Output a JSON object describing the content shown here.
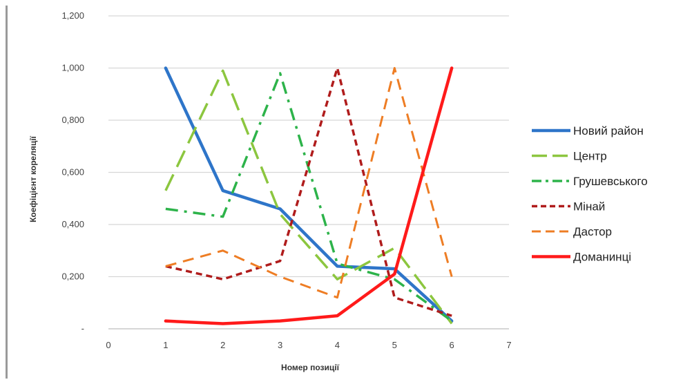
{
  "chart_data": {
    "type": "line",
    "xlabel": "Номер позиції",
    "ylabel": "Коефіцієнт кореляції",
    "xlim": [
      0,
      7
    ],
    "ylim": [
      0,
      1.2
    ],
    "x_ticks": [
      0,
      1,
      2,
      3,
      4,
      5,
      6,
      7
    ],
    "y_ticks": [
      0,
      0.2,
      0.4,
      0.6,
      0.8,
      1.0,
      1.2
    ],
    "y_tick_labels": [
      "-",
      "0,200",
      "0,400",
      "0,600",
      "0,800",
      "1,000",
      "1,200"
    ],
    "x_tick_labels": [
      "0",
      "1",
      "2",
      "3",
      "4",
      "5",
      "6",
      "7"
    ],
    "grid": "horizontal",
    "legend_position": "right",
    "x": [
      1,
      2,
      3,
      4,
      5,
      6
    ],
    "series": [
      {
        "name": "Новий район",
        "values": [
          1.0,
          0.53,
          0.46,
          0.24,
          0.23,
          0.03
        ],
        "color": "#2e75c9",
        "dash": "solid",
        "width": 4.5
      },
      {
        "name": "Центр",
        "values": [
          0.53,
          0.99,
          0.44,
          0.19,
          0.31,
          0.02
        ],
        "color": "#8cc63f",
        "dash": "longdash",
        "width": 3.5
      },
      {
        "name": "Грушевського",
        "values": [
          0.46,
          0.43,
          0.98,
          0.25,
          0.19,
          0.03
        ],
        "color": "#2db34a",
        "dash": "dashdot",
        "width": 3.5
      },
      {
        "name": "Мінай",
        "values": [
          0.24,
          0.19,
          0.26,
          1.0,
          0.12,
          0.05
        ],
        "color": "#b01c1c",
        "dash": "shortdash",
        "width": 3.5
      },
      {
        "name": "Дастор",
        "values": [
          0.24,
          0.3,
          0.2,
          0.12,
          1.0,
          0.2
        ],
        "color": "#ee7d24",
        "dash": "dash",
        "width": 3
      },
      {
        "name": "Доманинці",
        "values": [
          0.03,
          0.02,
          0.03,
          0.05,
          0.21,
          1.0
        ],
        "color": "#ff1a1a",
        "dash": "solid",
        "width": 4.5
      }
    ]
  }
}
